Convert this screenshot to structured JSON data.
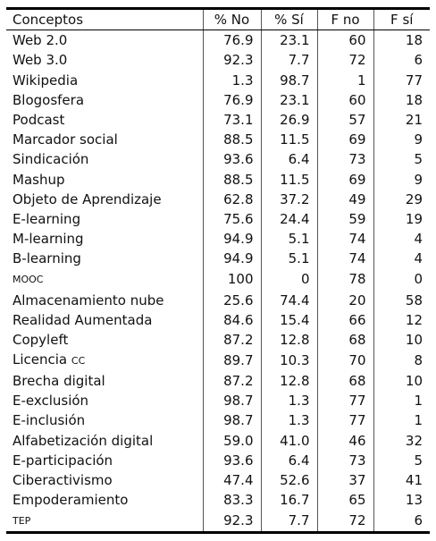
{
  "table": {
    "headers": [
      "Conceptos",
      "% No",
      "% Sí",
      "F no",
      "F sí"
    ],
    "rows": [
      {
        "concept": "Web 2.0",
        "pct_no": "76.9",
        "pct_si": "23.1",
        "f_no": "60",
        "f_si": "18"
      },
      {
        "concept": "Web 3.0",
        "pct_no": "92.3",
        "pct_si": "7.7",
        "f_no": "72",
        "f_si": "6"
      },
      {
        "concept": "Wikipedia",
        "pct_no": "1.3",
        "pct_si": "98.7",
        "f_no": "1",
        "f_si": "77"
      },
      {
        "concept": "Blogosfera",
        "pct_no": "76.9",
        "pct_si": "23.1",
        "f_no": "60",
        "f_si": "18"
      },
      {
        "concept": "Podcast",
        "pct_no": "73.1",
        "pct_si": "26.9",
        "f_no": "57",
        "f_si": "21"
      },
      {
        "concept": "Marcador social",
        "pct_no": "88.5",
        "pct_si": "11.5",
        "f_no": "69",
        "f_si": "9"
      },
      {
        "concept": "Sindicación",
        "pct_no": "93.6",
        "pct_si": "6.4",
        "f_no": "73",
        "f_si": "5"
      },
      {
        "concept": "Mashup",
        "pct_no": "88.5",
        "pct_si": "11.5",
        "f_no": "69",
        "f_si": "9"
      },
      {
        "concept": "Objeto de Aprendizaje",
        "pct_no": "62.8",
        "pct_si": "37.2",
        "f_no": "49",
        "f_si": "29"
      },
      {
        "concept": "E-learning",
        "pct_no": "75.6",
        "pct_si": "24.4",
        "f_no": "59",
        "f_si": "19"
      },
      {
        "concept": "M-learning",
        "pct_no": "94.9",
        "pct_si": "5.1",
        "f_no": "74",
        "f_si": "4"
      },
      {
        "concept": "B-learning",
        "pct_no": "94.9",
        "pct_si": "5.1",
        "f_no": "74",
        "f_si": "4"
      },
      {
        "concept": "MOOC",
        "pct_no": "100",
        "pct_si": "0",
        "f_no": "78",
        "f_si": "0"
      },
      {
        "concept": "Almacenamiento nube",
        "pct_no": "25.6",
        "pct_si": "74.4",
        "f_no": "20",
        "f_si": "58"
      },
      {
        "concept": "Realidad Aumentada",
        "pct_no": "84.6",
        "pct_si": "15.4",
        "f_no": "66",
        "f_si": "12"
      },
      {
        "concept": "Copyleft",
        "pct_no": "87.2",
        "pct_si": "12.8",
        "f_no": "68",
        "f_si": "10"
      },
      {
        "concept": "Licencia",
        "concept_suffix": "CC",
        "pct_no": "89.7",
        "pct_si": "10.3",
        "f_no": "70",
        "f_si": "8"
      },
      {
        "concept": "Brecha digital",
        "pct_no": "87.2",
        "pct_si": "12.8",
        "f_no": "68",
        "f_si": "10"
      },
      {
        "concept": "E-exclusión",
        "pct_no": "98.7",
        "pct_si": "1.3",
        "f_no": "77",
        "f_si": "1"
      },
      {
        "concept": "E-inclusión",
        "pct_no": "98.7",
        "pct_si": "1.3",
        "f_no": "77",
        "f_si": "1"
      },
      {
        "concept": "Alfabetización digital",
        "pct_no": "59.0",
        "pct_si": "41.0",
        "f_no": "46",
        "f_si": "32"
      },
      {
        "concept": "E-participación",
        "pct_no": "93.6",
        "pct_si": "6.4",
        "f_no": "73",
        "f_si": "5"
      },
      {
        "concept": "Ciberactivismo",
        "pct_no": "47.4",
        "pct_si": "52.6",
        "f_no": "37",
        "f_si": "41"
      },
      {
        "concept": "Empoderamiento",
        "pct_no": "83.3",
        "pct_si": "16.7",
        "f_no": "65",
        "f_si": "13"
      },
      {
        "concept": "TEP",
        "pct_no": "92.3",
        "pct_si": "7.7",
        "f_no": "72",
        "f_si": "6"
      }
    ]
  }
}
